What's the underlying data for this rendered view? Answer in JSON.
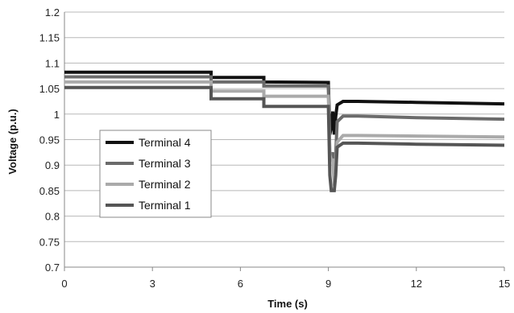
{
  "chart_data": {
    "type": "line",
    "title": "",
    "xlabel": "Time (s)",
    "ylabel": "Voltage (p.u.)",
    "xlim": [
      0,
      15
    ],
    "ylim": [
      0.7,
      1.2
    ],
    "x_ticks": [
      0,
      3,
      6,
      9,
      12,
      15
    ],
    "x_tick_labels": [
      "0",
      "3",
      "6",
      "9",
      "12",
      "15"
    ],
    "y_ticks": [
      0.7,
      0.75,
      0.8,
      0.85,
      0.9,
      0.95,
      1.0,
      1.05,
      1.1,
      1.15,
      1.2
    ],
    "y_tick_labels": [
      "0.7",
      "0.75",
      "0.8",
      "0.85",
      "0.9",
      "0.95",
      "1",
      "1.05",
      "1.1",
      "1.15",
      "1.2"
    ],
    "grid": "horizontal",
    "legend": {
      "placement": "left-middle"
    },
    "series": [
      {
        "name": "Terminal 4",
        "color": "#111111",
        "x": [
          0,
          5,
          5,
          6.8,
          6.8,
          9.0,
          9.05,
          9.1,
          9.15,
          9.2,
          9.25,
          9.3,
          9.5,
          10,
          12,
          15
        ],
        "y": [
          1.082,
          1.082,
          1.072,
          1.072,
          1.063,
          1.062,
          0.96,
          0.975,
          1.005,
          0.96,
          0.995,
          1.018,
          1.025,
          1.025,
          1.023,
          1.02
        ]
      },
      {
        "name": "Terminal 3",
        "color": "#6b6b6b",
        "x": [
          0,
          5,
          5,
          6.8,
          6.8,
          9.0,
          9.05,
          9.1,
          9.15,
          9.2,
          9.25,
          9.3,
          9.5,
          10,
          12,
          15
        ],
        "y": [
          1.073,
          1.073,
          1.063,
          1.063,
          1.055,
          1.055,
          0.92,
          0.915,
          0.925,
          0.87,
          0.92,
          0.985,
          0.996,
          0.996,
          0.993,
          0.99
        ]
      },
      {
        "name": "Terminal 2",
        "color": "#aaaaaa",
        "x": [
          0,
          5,
          5,
          6.8,
          6.8,
          9.0,
          9.05,
          9.1,
          9.15,
          9.2,
          9.25,
          9.3,
          9.5,
          10,
          12,
          15
        ],
        "y": [
          1.063,
          1.063,
          1.045,
          1.045,
          1.035,
          1.035,
          0.92,
          0.91,
          0.91,
          0.86,
          0.9,
          0.945,
          0.958,
          0.958,
          0.957,
          0.955
        ]
      },
      {
        "name": "Terminal 1",
        "color": "#555555",
        "x": [
          0,
          5,
          5,
          6.8,
          6.8,
          9.0,
          9.05,
          9.1,
          9.15,
          9.2,
          9.25,
          9.3,
          9.5,
          10,
          12,
          15
        ],
        "y": [
          1.052,
          1.052,
          1.03,
          1.03,
          1.015,
          1.015,
          0.88,
          0.85,
          0.85,
          0.85,
          0.88,
          0.935,
          0.943,
          0.943,
          0.941,
          0.939
        ]
      }
    ]
  }
}
